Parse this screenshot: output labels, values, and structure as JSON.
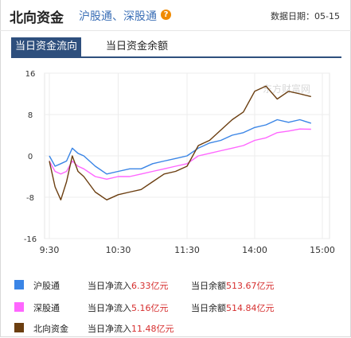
{
  "header": {
    "title": "北向资金",
    "subtitle": "沪股通、深股通",
    "date_label": "数据日期：05-15"
  },
  "tabs": [
    {
      "label": "当日资金流向",
      "active": true
    },
    {
      "label": "当日资金余额",
      "active": false
    }
  ],
  "watermark": "东方财富网",
  "colors": {
    "hgt": "#3a85e6",
    "sgt": "#ff66ff",
    "north": "#6b3e10"
  },
  "legend": [
    {
      "name": "沪股通",
      "flow_label": "当日净流入",
      "flow_value": "6.33亿元",
      "balance_label": "当日余额",
      "balance_value": "513.67亿元"
    },
    {
      "name": "深股通",
      "flow_label": "当日净流入",
      "flow_value": "5.16亿元",
      "balance_label": "当日余额",
      "balance_value": "514.84亿元"
    },
    {
      "name": "北向资金",
      "flow_label": "当日净流入",
      "flow_value": "11.48亿元",
      "balance_label": "",
      "balance_value": ""
    }
  ],
  "chart_data": {
    "type": "line",
    "x_ticks": [
      "9:30",
      "10:30",
      "11:30",
      "14:00",
      "15:00"
    ],
    "y_ticks": [
      16,
      8,
      0,
      -8,
      -16
    ],
    "ylim": [
      -16,
      16
    ],
    "grid": true,
    "series": [
      {
        "name": "沪股通",
        "color": "#3a85e6",
        "x": [
          "9:30",
          "9:35",
          "9:40",
          "9:45",
          "9:50",
          "9:55",
          "10:00",
          "10:10",
          "10:20",
          "10:30",
          "10:40",
          "10:50",
          "11:00",
          "11:10",
          "11:20",
          "11:30",
          "13:10",
          "13:20",
          "13:30",
          "13:40",
          "13:50",
          "14:00",
          "14:10",
          "14:20",
          "14:30",
          "14:40",
          "14:50"
        ],
        "values": [
          0,
          -2,
          -1.5,
          -1,
          1.5,
          0.5,
          0,
          -2,
          -3.5,
          -3,
          -2.5,
          -2.5,
          -1.5,
          -1,
          -0.5,
          0,
          1.5,
          2.5,
          3,
          4,
          4.5,
          5.5,
          6,
          7,
          6.5,
          7,
          6.33
        ]
      },
      {
        "name": "深股通",
        "color": "#ff66ff",
        "x": [
          "9:30",
          "9:35",
          "9:40",
          "9:45",
          "9:50",
          "9:55",
          "10:00",
          "10:10",
          "10:20",
          "10:30",
          "10:40",
          "10:50",
          "11:00",
          "11:10",
          "11:20",
          "11:30",
          "13:10",
          "13:20",
          "13:30",
          "13:40",
          "13:50",
          "14:00",
          "14:10",
          "14:20",
          "14:30",
          "14:40",
          "14:50"
        ],
        "values": [
          -1,
          -3,
          -3.5,
          -3,
          -1,
          -2,
          -2.5,
          -4,
          -4.5,
          -4,
          -4,
          -3.5,
          -3,
          -2.5,
          -2,
          -1.5,
          0,
          0.5,
          1,
          1.5,
          2,
          3,
          3.5,
          4.5,
          4.8,
          5.2,
          5.16
        ]
      },
      {
        "name": "北向资金",
        "color": "#6b3e10",
        "x": [
          "9:30",
          "9:35",
          "9:40",
          "9:45",
          "9:50",
          "9:55",
          "10:00",
          "10:10",
          "10:20",
          "10:30",
          "10:40",
          "10:50",
          "11:00",
          "11:10",
          "11:20",
          "11:30",
          "13:10",
          "13:20",
          "13:30",
          "13:40",
          "13:50",
          "14:00",
          "14:10",
          "14:20",
          "14:30",
          "14:40",
          "14:50"
        ],
        "values": [
          -1,
          -6,
          -8.5,
          -5,
          0,
          -3,
          -4,
          -7,
          -8.5,
          -7.5,
          -7,
          -6.5,
          -5,
          -3.5,
          -3,
          -2,
          2,
          3,
          5,
          7,
          8.5,
          12.5,
          13.5,
          11,
          12.5,
          12,
          11.48
        ]
      }
    ]
  }
}
